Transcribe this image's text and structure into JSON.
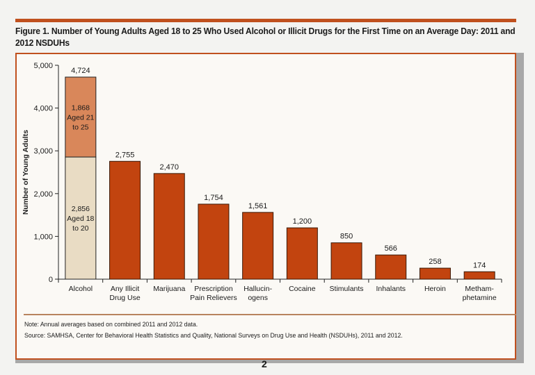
{
  "figure_title": "Figure 1. Number of Young Adults Aged 18 to 25 Who Used Alcohol or Illicit Drugs for the First Time on an Average Day: 2011 and 2012 NSDUHs",
  "note": "Note: Annual averages based on combined 2011 and 2012 data.",
  "source": "Source: SAMHSA, Center for Behavioral Health Statistics and Quality, National Surveys on Drug Use and Health (NSDUHs), 2011 and 2012.",
  "page_number": "2",
  "colors": {
    "accent": "#c0501e",
    "bar": "#c2440f",
    "alcohol_21_25": "#d9875a",
    "alcohol_18_20": "#e9dcc4"
  },
  "chart_data": {
    "type": "bar",
    "title": "Figure 1. Number of Young Adults Aged 18 to 25 Who Used Alcohol or Illicit Drugs for the First Time on an Average Day: 2011 and 2012 NSDUHs",
    "xlabel": "",
    "ylabel": "Number of Young Adults",
    "ylim": [
      0,
      5000
    ],
    "yticks": [
      "0",
      "1,000",
      "2,000",
      "3,000",
      "4,000",
      "5,000"
    ],
    "grid": false,
    "categories": [
      [
        "Alcohol"
      ],
      [
        "Any Illicit",
        "Drug Use"
      ],
      [
        "Marijuana"
      ],
      [
        "Prescription",
        "Pain Relievers"
      ],
      [
        "Hallucin-",
        "ogens"
      ],
      [
        "Cocaine"
      ],
      [
        "Stimulants"
      ],
      [
        "Inhalants"
      ],
      [
        "Heroin"
      ],
      [
        "Metham-",
        "phetamine"
      ]
    ],
    "values": [
      4724,
      2755,
      2470,
      1754,
      1561,
      1200,
      850,
      566,
      258,
      174
    ],
    "value_labels": [
      "4,724",
      "2,755",
      "2,470",
      "1,754",
      "1,561",
      "1,200",
      "850",
      "566",
      "258",
      "174"
    ],
    "alcohol_stack": [
      {
        "value": 2856,
        "label": [
          "2,856",
          "Aged 18",
          "to 20"
        ]
      },
      {
        "value": 1868,
        "label": [
          "1,868",
          "Aged 21",
          "to 25"
        ]
      }
    ]
  }
}
